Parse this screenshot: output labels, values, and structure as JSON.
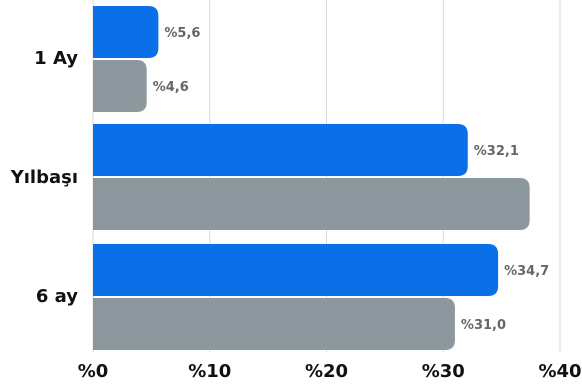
{
  "chart_data": {
    "type": "bar",
    "orientation": "horizontal",
    "categories": [
      "1 Ay",
      "Yılbaşı",
      "6 ay"
    ],
    "series": [
      {
        "color": "#0b6fe8",
        "values": [
          5.6,
          32.1,
          34.7
        ],
        "labels": [
          "%5,6",
          "%32,1",
          "%34,7"
        ]
      },
      {
        "color": "#8c979e",
        "values": [
          4.6,
          37.4,
          31.0
        ],
        "labels": [
          "%4,6",
          "",
          "%31,0"
        ]
      }
    ],
    "xlim": [
      0,
      40
    ],
    "ticks": [
      0,
      10,
      20,
      30,
      40
    ],
    "tick_labels": [
      "%0",
      "%10",
      "%20",
      "%30",
      "%40"
    ],
    "grid": true,
    "legend": "none"
  }
}
